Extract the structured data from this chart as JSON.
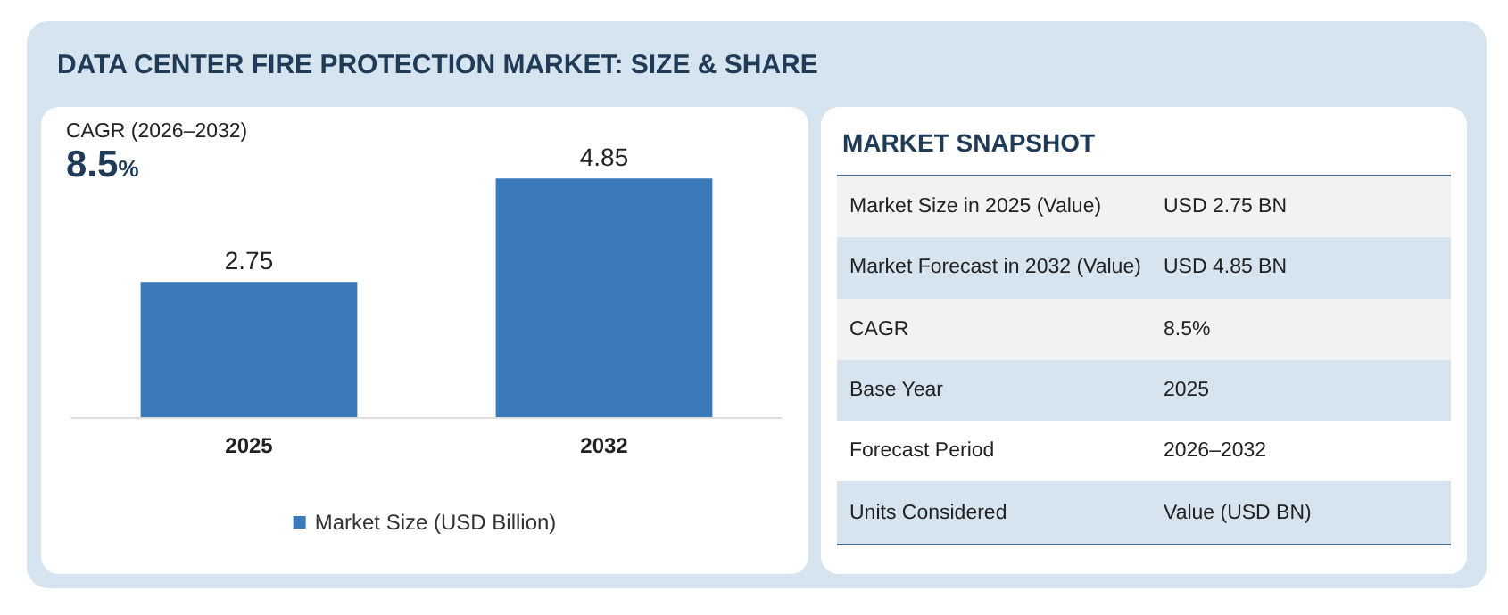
{
  "chart_data": [
    {
      "type": "bar",
      "title": "DATA CENTER FIRE PROTECTION MARKET: SIZE & SHARE",
      "subtitle": "CAGR (2026–2032)",
      "annotations": [
        "8.5%"
      ],
      "categories": [
        "2025",
        "2032"
      ],
      "series": [
        {
          "name": "Market Size (USD Billion)",
          "color": "#3b7aba",
          "values": [
            2.75,
            4.85
          ]
        }
      ],
      "data_labels": true,
      "legend": "bottom"
    },
    {
      "type": "other",
      "title": "MARKET SNAPSHOT",
      "categories": [
        "Market Size in 2025 (Value)",
        "Market Forecast in 2032 (Value)",
        "CAGR",
        "Base Year",
        "Forecast Period",
        "Units Considered"
      ],
      "value_labels": [
        "USD 2.75 BN",
        "USD 4.85 BN",
        "8.5%",
        "2025",
        "2026–2032",
        "Value (USD BN)"
      ]
    }
  ]
}
